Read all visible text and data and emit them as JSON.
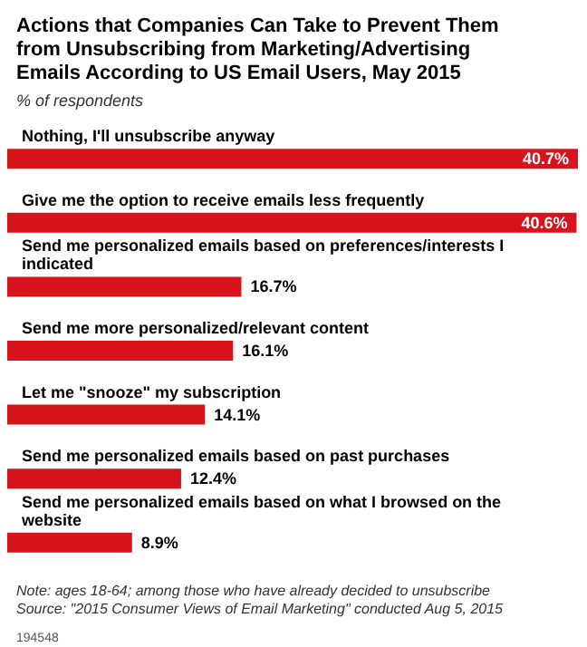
{
  "chart_data": {
    "type": "bar",
    "orientation": "horizontal",
    "title": "Actions that Companies Can Take to Prevent Them from Unsubscribing from Marketing/Advertising Emails According to US Email Users, May 2015",
    "subtitle": "% of respondents",
    "categories": [
      "Nothing, I'll unsubscribe anyway",
      "Give me the option to receive emails less frequently",
      "Send me personalized emails based on preferences/interests I indicated",
      "Send me more personalized/relevant content",
      "Let me \"snooze\" my subscription",
      "Send me personalized emails based on past purchases",
      "Send me personalized emails based on what I browsed on the website"
    ],
    "values": [
      40.7,
      40.6,
      16.7,
      16.1,
      14.1,
      12.4,
      8.9
    ],
    "value_labels": [
      "40.7%",
      "40.6%",
      "16.7%",
      "16.1%",
      "14.1%",
      "12.4%",
      "8.9%"
    ],
    "color": "#d7141b",
    "annotations": [
      "Note: ages 18-64; among those who have already decided to unsubscribe\nSource: \"2015 Consumer Views of Email Marketing\" conducted Aug 5, 2015",
      "194548"
    ]
  }
}
